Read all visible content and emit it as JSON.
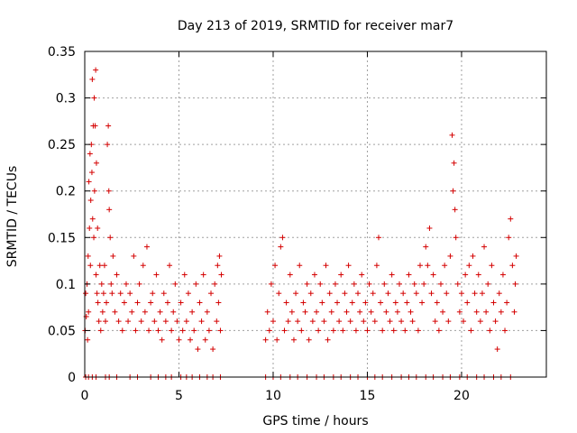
{
  "chart_data": {
    "type": "scatter",
    "title": "Day 213 of 2019, SRMTID for receiver mar7",
    "xlabel": "GPS time / hours",
    "ylabel": "SRMTID / TECUs",
    "xlim": [
      0,
      24.5
    ],
    "ylim": [
      0,
      0.35
    ],
    "grid": true,
    "marker": "+",
    "color": "#d40000",
    "x_ticks": [
      {
        "value": 0,
        "label": "0"
      },
      {
        "value": 5,
        "label": "5"
      },
      {
        "value": 10,
        "label": "10"
      },
      {
        "value": 15,
        "label": "15"
      },
      {
        "value": 20,
        "label": "20"
      }
    ],
    "y_ticks": [
      {
        "value": 0,
        "label": "0"
      },
      {
        "value": 0.05,
        "label": "0.05"
      },
      {
        "value": 0.1,
        "label": "0.1"
      },
      {
        "value": 0.15,
        "label": "0.15"
      },
      {
        "value": 0.2,
        "label": "0.2"
      },
      {
        "value": 0.25,
        "label": "0.25"
      },
      {
        "value": 0.3,
        "label": "0.3"
      },
      {
        "value": 0.35,
        "label": "0.35"
      }
    ],
    "series": [
      {
        "name": "SRMTID",
        "points": [
          [
            0.02,
            0.05
          ],
          [
            0.05,
            0.09
          ],
          [
            0.08,
            0.065
          ],
          [
            0.12,
            0.1
          ],
          [
            0.15,
            0.04
          ],
          [
            0.18,
            0.13
          ],
          [
            0.2,
            0.07
          ],
          [
            0.22,
            0.21
          ],
          [
            0.25,
            0.16
          ],
          [
            0.28,
            0.24
          ],
          [
            0.3,
            0.12
          ],
          [
            0.32,
            0.19
          ],
          [
            0.35,
            0.25
          ],
          [
            0.38,
            0.22
          ],
          [
            0.4,
            0.32
          ],
          [
            0.42,
            0.17
          ],
          [
            0.45,
            0.27
          ],
          [
            0.48,
            0.15
          ],
          [
            0.5,
            0.3
          ],
          [
            0.52,
            0.2
          ],
          [
            0.55,
            0.27
          ],
          [
            0.58,
            0.33
          ],
          [
            0.6,
            0.11
          ],
          [
            0.62,
            0.23
          ],
          [
            0.65,
            0.09
          ],
          [
            0.68,
            0.16
          ],
          [
            0.7,
            0.08
          ],
          [
            0.75,
            0.06
          ],
          [
            0.8,
            0.12
          ],
          [
            0.85,
            0.05
          ],
          [
            0.9,
            0.1
          ],
          [
            0.95,
            0.07
          ],
          [
            1.0,
            0.09
          ],
          [
            1.05,
            0.12
          ],
          [
            1.1,
            0.06
          ],
          [
            1.15,
            0.08
          ],
          [
            1.2,
            0.25
          ],
          [
            1.25,
            0.27
          ],
          [
            1.28,
            0.2
          ],
          [
            1.3,
            0.18
          ],
          [
            1.35,
            0.15
          ],
          [
            1.4,
            0.1
          ],
          [
            1.45,
            0.09
          ],
          [
            1.5,
            0.13
          ],
          [
            1.6,
            0.07
          ],
          [
            1.7,
            0.11
          ],
          [
            1.8,
            0.06
          ],
          [
            1.9,
            0.09
          ],
          [
            2.0,
            0.05
          ],
          [
            2.1,
            0.08
          ],
          [
            2.2,
            0.1
          ],
          [
            2.3,
            0.06
          ],
          [
            2.4,
            0.09
          ],
          [
            2.5,
            0.07
          ],
          [
            2.6,
            0.13
          ],
          [
            2.7,
            0.05
          ],
          [
            2.8,
            0.08
          ],
          [
            2.9,
            0.1
          ],
          [
            3.0,
            0.06
          ],
          [
            3.1,
            0.12
          ],
          [
            3.2,
            0.07
          ],
          [
            3.3,
            0.14
          ],
          [
            3.4,
            0.05
          ],
          [
            3.5,
            0.08
          ],
          [
            3.6,
            0.09
          ],
          [
            3.7,
            0.06
          ],
          [
            3.8,
            0.11
          ],
          [
            3.9,
            0.05
          ],
          [
            4.0,
            0.07
          ],
          [
            4.1,
            0.04
          ],
          [
            4.2,
            0.09
          ],
          [
            4.3,
            0.06
          ],
          [
            4.4,
            0.08
          ],
          [
            4.5,
            0.12
          ],
          [
            4.6,
            0.05
          ],
          [
            4.7,
            0.07
          ],
          [
            4.8,
            0.1
          ],
          [
            4.9,
            0.06
          ],
          [
            5.0,
            0.04
          ],
          [
            5.1,
            0.08
          ],
          [
            5.2,
            0.05
          ],
          [
            5.3,
            0.11
          ],
          [
            5.4,
            0.06
          ],
          [
            5.5,
            0.09
          ],
          [
            5.6,
            0.04
          ],
          [
            5.7,
            0.07
          ],
          [
            5.8,
            0.05
          ],
          [
            5.9,
            0.1
          ],
          [
            6.0,
            0.03
          ],
          [
            6.1,
            0.08
          ],
          [
            6.2,
            0.06
          ],
          [
            6.3,
            0.11
          ],
          [
            6.4,
            0.04
          ],
          [
            6.5,
            0.07
          ],
          [
            6.6,
            0.05
          ],
          [
            6.7,
            0.09
          ],
          [
            6.8,
            0.03
          ],
          [
            6.9,
            0.1
          ],
          [
            7.0,
            0.06
          ],
          [
            7.05,
            0.12
          ],
          [
            7.1,
            0.08
          ],
          [
            7.15,
            0.13
          ],
          [
            7.2,
            0.05
          ],
          [
            7.25,
            0.11
          ],
          [
            9.6,
            0.04
          ],
          [
            9.7,
            0.07
          ],
          [
            9.8,
            0.05
          ],
          [
            9.9,
            0.1
          ],
          [
            10.0,
            0.06
          ],
          [
            10.1,
            0.12
          ],
          [
            10.2,
            0.04
          ],
          [
            10.3,
            0.09
          ],
          [
            10.4,
            0.14
          ],
          [
            10.5,
            0.15
          ],
          [
            10.6,
            0.05
          ],
          [
            10.7,
            0.08
          ],
          [
            10.8,
            0.06
          ],
          [
            10.9,
            0.11
          ],
          [
            11.0,
            0.07
          ],
          [
            11.1,
            0.04
          ],
          [
            11.2,
            0.09
          ],
          [
            11.3,
            0.06
          ],
          [
            11.4,
            0.12
          ],
          [
            11.5,
            0.05
          ],
          [
            11.6,
            0.08
          ],
          [
            11.7,
            0.07
          ],
          [
            11.8,
            0.1
          ],
          [
            11.9,
            0.04
          ],
          [
            12.0,
            0.09
          ],
          [
            12.1,
            0.06
          ],
          [
            12.2,
            0.11
          ],
          [
            12.3,
            0.07
          ],
          [
            12.4,
            0.05
          ],
          [
            12.5,
            0.1
          ],
          [
            12.6,
            0.08
          ],
          [
            12.7,
            0.06
          ],
          [
            12.8,
            0.12
          ],
          [
            12.9,
            0.04
          ],
          [
            13.0,
            0.09
          ],
          [
            13.1,
            0.07
          ],
          [
            13.2,
            0.05
          ],
          [
            13.3,
            0.1
          ],
          [
            13.4,
            0.08
          ],
          [
            13.5,
            0.06
          ],
          [
            13.6,
            0.11
          ],
          [
            13.7,
            0.05
          ],
          [
            13.8,
            0.09
          ],
          [
            13.9,
            0.07
          ],
          [
            14.0,
            0.12
          ],
          [
            14.1,
            0.06
          ],
          [
            14.2,
            0.08
          ],
          [
            14.3,
            0.1
          ],
          [
            14.4,
            0.05
          ],
          [
            14.5,
            0.09
          ],
          [
            14.6,
            0.07
          ],
          [
            14.7,
            0.11
          ],
          [
            14.8,
            0.06
          ],
          [
            14.9,
            0.08
          ],
          [
            15.0,
            0.05
          ],
          [
            15.1,
            0.1
          ],
          [
            15.2,
            0.07
          ],
          [
            15.3,
            0.09
          ],
          [
            15.4,
            0.06
          ],
          [
            15.5,
            0.12
          ],
          [
            15.6,
            0.15
          ],
          [
            15.7,
            0.08
          ],
          [
            15.8,
            0.05
          ],
          [
            15.9,
            0.1
          ],
          [
            16.0,
            0.07
          ],
          [
            16.1,
            0.09
          ],
          [
            16.2,
            0.06
          ],
          [
            16.3,
            0.11
          ],
          [
            16.4,
            0.05
          ],
          [
            16.5,
            0.08
          ],
          [
            16.6,
            0.07
          ],
          [
            16.7,
            0.1
          ],
          [
            16.8,
            0.06
          ],
          [
            16.9,
            0.09
          ],
          [
            17.0,
            0.05
          ],
          [
            17.1,
            0.08
          ],
          [
            17.2,
            0.11
          ],
          [
            17.3,
            0.07
          ],
          [
            17.4,
            0.06
          ],
          [
            17.5,
            0.1
          ],
          [
            17.6,
            0.09
          ],
          [
            17.7,
            0.05
          ],
          [
            17.8,
            0.12
          ],
          [
            17.9,
            0.08
          ],
          [
            18.0,
            0.1
          ],
          [
            18.1,
            0.14
          ],
          [
            18.2,
            0.12
          ],
          [
            18.3,
            0.16
          ],
          [
            18.4,
            0.09
          ],
          [
            18.5,
            0.11
          ],
          [
            18.6,
            0.06
          ],
          [
            18.7,
            0.08
          ],
          [
            18.8,
            0.05
          ],
          [
            18.9,
            0.1
          ],
          [
            19.0,
            0.07
          ],
          [
            19.1,
            0.12
          ],
          [
            19.2,
            0.09
          ],
          [
            19.3,
            0.06
          ],
          [
            19.4,
            0.13
          ],
          [
            19.5,
            0.26
          ],
          [
            19.55,
            0.2
          ],
          [
            19.6,
            0.23
          ],
          [
            19.65,
            0.18
          ],
          [
            19.7,
            0.15
          ],
          [
            19.8,
            0.1
          ],
          [
            19.9,
            0.07
          ],
          [
            20.0,
            0.09
          ],
          [
            20.1,
            0.06
          ],
          [
            20.2,
            0.11
          ],
          [
            20.3,
            0.08
          ],
          [
            20.4,
            0.12
          ],
          [
            20.5,
            0.05
          ],
          [
            20.6,
            0.13
          ],
          [
            20.7,
            0.09
          ],
          [
            20.8,
            0.07
          ],
          [
            20.9,
            0.11
          ],
          [
            21.0,
            0.06
          ],
          [
            21.1,
            0.09
          ],
          [
            21.2,
            0.14
          ],
          [
            21.3,
            0.07
          ],
          [
            21.4,
            0.1
          ],
          [
            21.5,
            0.05
          ],
          [
            21.6,
            0.12
          ],
          [
            21.7,
            0.08
          ],
          [
            21.8,
            0.06
          ],
          [
            21.9,
            0.03
          ],
          [
            22.0,
            0.09
          ],
          [
            22.1,
            0.07
          ],
          [
            22.2,
            0.11
          ],
          [
            22.3,
            0.05
          ],
          [
            22.4,
            0.08
          ],
          [
            22.5,
            0.15
          ],
          [
            22.6,
            0.17
          ],
          [
            22.7,
            0.12
          ],
          [
            22.8,
            0.07
          ],
          [
            22.85,
            0.1
          ],
          [
            22.9,
            0.13
          ],
          [
            0.05,
            0.0
          ],
          [
            0.2,
            0.0
          ],
          [
            0.4,
            0.0
          ],
          [
            0.6,
            0.0
          ],
          [
            1.1,
            0.0
          ],
          [
            1.3,
            0.0
          ],
          [
            1.7,
            0.0
          ],
          [
            2.4,
            0.0
          ],
          [
            2.8,
            0.0
          ],
          [
            3.5,
            0.0
          ],
          [
            3.9,
            0.0
          ],
          [
            4.3,
            0.0
          ],
          [
            4.6,
            0.0
          ],
          [
            5.1,
            0.0
          ],
          [
            5.4,
            0.0
          ],
          [
            5.7,
            0.0
          ],
          [
            6.1,
            0.0
          ],
          [
            6.5,
            0.0
          ],
          [
            6.8,
            0.0
          ],
          [
            7.2,
            0.0
          ],
          [
            9.6,
            0.0
          ],
          [
            10.0,
            0.0
          ],
          [
            10.4,
            0.0
          ],
          [
            10.9,
            0.0
          ],
          [
            11.3,
            0.0
          ],
          [
            11.8,
            0.0
          ],
          [
            12.3,
            0.0
          ],
          [
            12.7,
            0.0
          ],
          [
            13.2,
            0.0
          ],
          [
            13.6,
            0.0
          ],
          [
            14.1,
            0.0
          ],
          [
            14.5,
            0.0
          ],
          [
            15.0,
            0.0
          ],
          [
            15.4,
            0.0
          ],
          [
            15.8,
            0.0
          ],
          [
            16.3,
            0.0
          ],
          [
            16.8,
            0.0
          ],
          [
            17.2,
            0.0
          ],
          [
            17.6,
            0.0
          ],
          [
            18.1,
            0.0
          ],
          [
            18.5,
            0.0
          ],
          [
            19.0,
            0.0
          ],
          [
            19.4,
            0.0
          ],
          [
            19.9,
            0.0
          ],
          [
            20.3,
            0.0
          ],
          [
            20.8,
            0.0
          ],
          [
            21.2,
            0.0
          ],
          [
            21.7,
            0.0
          ],
          [
            22.1,
            0.0
          ],
          [
            22.6,
            0.0
          ]
        ]
      }
    ]
  }
}
